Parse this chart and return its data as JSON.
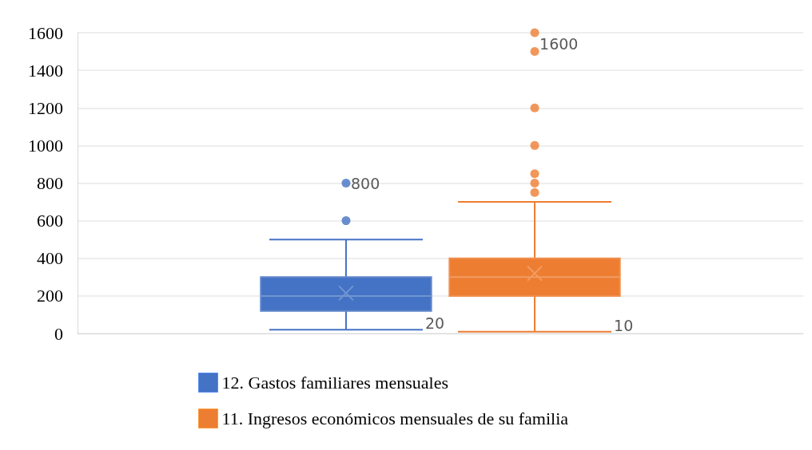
{
  "chart_data": {
    "type": "box",
    "categories": [
      null
    ],
    "series": [
      {
        "name": "12. Gastos familiares mensuales",
        "color": "#4472c4",
        "boxes": [
          {
            "low": 20,
            "q1": 120,
            "median": 200,
            "q3": 300,
            "high": 500,
            "mean": 215,
            "outliers": [
              600,
              800
            ]
          }
        ]
      },
      {
        "name": "11. Ingresos económicos mensuales de su familia",
        "color": "#ed7d31",
        "boxes": [
          {
            "low": 10,
            "q1": 200,
            "median": 300,
            "q3": 400,
            "high": 700,
            "mean": 320,
            "outliers": [
              750,
              800,
              850,
              1000,
              1200,
              1500,
              1600
            ]
          }
        ]
      }
    ],
    "ylim": [
      0,
      1600
    ],
    "yticks": [
      0,
      200,
      400,
      600,
      800,
      1000,
      1200,
      1400,
      1600
    ],
    "annotations": [
      "800",
      "20",
      "1600",
      "10"
    ],
    "grid": "y",
    "legend": "bottom",
    "marker": "circle"
  }
}
